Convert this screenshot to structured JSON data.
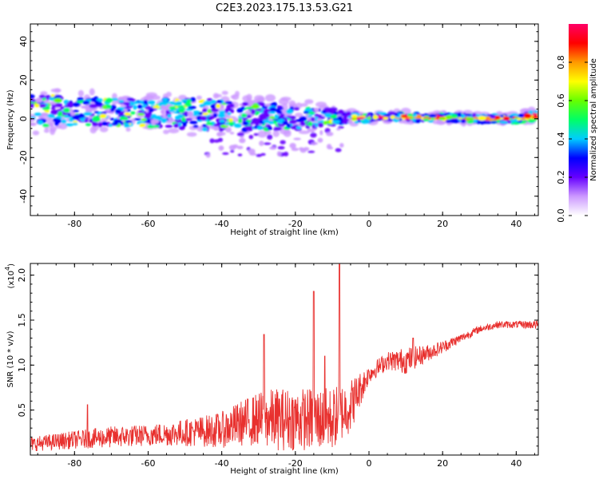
{
  "chart_data": [
    {
      "type": "heatmap",
      "title": "C2E3.2023.175.13.53.G21",
      "xlabel": "Height of straight line (km)",
      "ylabel": "Frequency (Hz)",
      "xlim": [
        -92,
        46
      ],
      "ylim": [
        -50,
        49
      ],
      "xticks": [
        "-80",
        "-60",
        "-40",
        "-20",
        "0",
        "20",
        "40"
      ],
      "yticks": [
        "40",
        "20",
        "0",
        "-20",
        "-40"
      ],
      "colorbar": {
        "label": "Normalized spectral amplitude",
        "range": [
          0,
          1
        ],
        "ticks": [
          "0.0",
          "0.2",
          "0.4",
          "0.6",
          "0.8"
        ],
        "colors": [
          "#ffffff",
          "#cc99ff",
          "#6600ff",
          "#0000ff",
          "#00ccff",
          "#00ff66",
          "#66ff00",
          "#ffff00",
          "#ff9900",
          "#ff0000",
          "#ff0066"
        ]
      },
      "band": {
        "x": [
          -92,
          -80,
          -60,
          -40,
          -30,
          -20,
          -10,
          -5,
          0,
          10,
          20,
          30,
          40,
          46
        ],
        "center": [
          4,
          4,
          3,
          2,
          1,
          1,
          1,
          0.5,
          0.5,
          1,
          0.5,
          0,
          0,
          2
        ],
        "halfwidth": [
          8,
          7,
          7,
          8,
          7,
          6,
          4,
          2.5,
          2,
          2,
          2,
          2,
          2,
          3
        ]
      }
    },
    {
      "type": "line",
      "xlabel": "Height of straight line (km)",
      "ylabel": "SNR (10 * v/v)",
      "yscale_label": "(x10",
      "yscale_exp": "4",
      "xlim": [
        -92,
        46
      ],
      "ylim": [
        0,
        2.13
      ],
      "xticks": [
        "-80",
        "-60",
        "-40",
        "-20",
        "0",
        "20",
        "40"
      ],
      "yticks": [
        "2.0",
        "1.5",
        "1.0",
        "0.5"
      ],
      "series": [
        {
          "name": "SNR",
          "color": "#e8302e",
          "x": [
            -92,
            -80,
            -70,
            -60,
            -50,
            -40,
            -35,
            -30,
            -25,
            -20,
            -15,
            -10,
            -5,
            0,
            5,
            10,
            15,
            20,
            25,
            30,
            35,
            40,
            46
          ],
          "mean": [
            0.12,
            0.17,
            0.2,
            0.22,
            0.25,
            0.28,
            0.35,
            0.4,
            0.4,
            0.4,
            0.4,
            0.4,
            0.55,
            0.9,
            1.05,
            1.05,
            1.12,
            1.2,
            1.3,
            1.4,
            1.45,
            1.45,
            1.45
          ],
          "amp": [
            0.08,
            0.1,
            0.12,
            0.12,
            0.15,
            0.2,
            0.25,
            0.3,
            0.35,
            0.35,
            0.35,
            0.35,
            0.3,
            0.1,
            0.1,
            0.15,
            0.1,
            0.07,
            0.05,
            0.04,
            0.04,
            0.04,
            0.05
          ],
          "peaks": [
            {
              "x": -76.5,
              "y": 0.56
            },
            {
              "x": -28.5,
              "y": 1.34
            },
            {
              "x": -15,
              "y": 1.82
            },
            {
              "x": -8,
              "y": 2.12
            },
            {
              "x": -12,
              "y": 1.1
            },
            {
              "x": 12,
              "y": 1.3
            }
          ]
        }
      ]
    }
  ]
}
